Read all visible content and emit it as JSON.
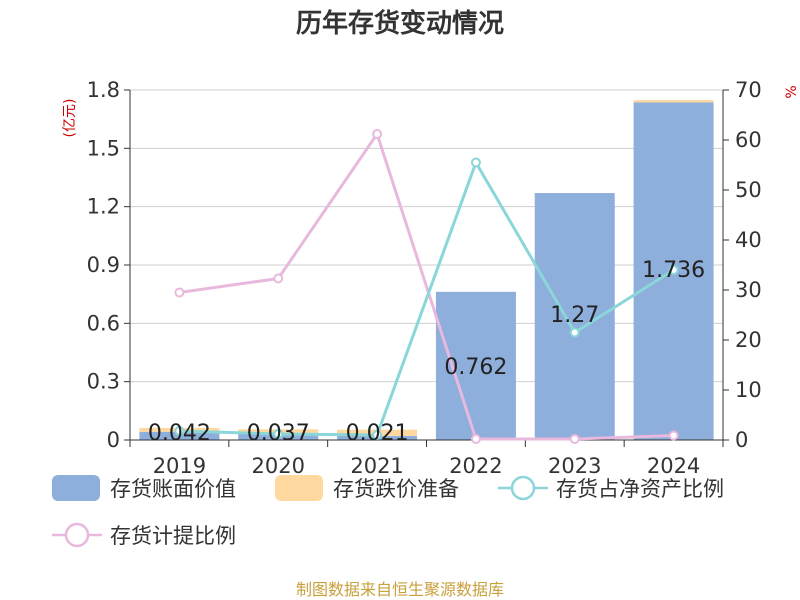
{
  "title": "历年存货变动情况",
  "source": "制图数据来自恒生聚源数据库",
  "colors": {
    "book_value": "#8eaedb",
    "impairment": "#ffd8a0",
    "net_asset_ratio": "#8ad6d9",
    "provision_ratio": "#e8b9dc",
    "unit": "#cc0000",
    "source": "#c8a03c"
  },
  "chart_data": {
    "type": "bar",
    "categories": [
      "2019",
      "2020",
      "2021",
      "2022",
      "2023",
      "2024"
    ],
    "left_axis": {
      "unit": "(亿元)",
      "ylim": [
        0,
        1.8
      ],
      "ticks": [
        "0",
        "0.3",
        "0.6",
        "0.9",
        "1.2",
        "1.5",
        "1.8"
      ]
    },
    "right_axis": {
      "unit": "%",
      "ylim": [
        0,
        70
      ],
      "ticks": [
        "0",
        "10",
        "20",
        "30",
        "40",
        "50",
        "60",
        "70"
      ]
    },
    "series": [
      {
        "name": "存货账面价值",
        "kind": "bar",
        "axis": "left",
        "values": [
          0.042,
          0.037,
          0.021,
          0.762,
          1.27,
          1.736
        ],
        "labels": [
          "0.042",
          "0.037",
          "0.021",
          "0.762",
          "1.27",
          "1.736"
        ]
      },
      {
        "name": "存货跌价准备",
        "kind": "bar",
        "axis": "left",
        "values": [
          0.02,
          0.018,
          0.032,
          0,
          0,
          0.012
        ]
      },
      {
        "name": "存货占净资产比例",
        "kind": "line",
        "axis": "right",
        "values": [
          1.8,
          1.2,
          1.0,
          55.5,
          21.5,
          34.0
        ]
      },
      {
        "name": "存货计提比例",
        "kind": "line",
        "axis": "right",
        "values": [
          29.5,
          32.3,
          61.2,
          0.2,
          0.2,
          0.9
        ]
      }
    ],
    "grid": true,
    "legend_position": "bottom"
  }
}
